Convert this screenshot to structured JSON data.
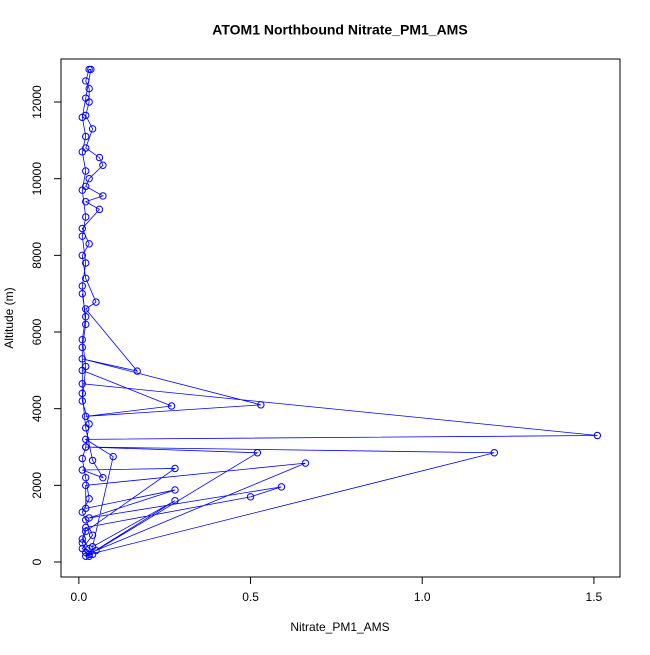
{
  "chart_data": {
    "type": "scatter_line",
    "title": "ATOM1 Northbound Nitrate_PM1_AMS",
    "x_label": "Nitrate_PM1_AMS",
    "y_label": "Altitude (m)",
    "color": "#0000ff",
    "xlim": [
      -0.052,
      1.576
    ],
    "ylim": [
      -391,
      13122
    ],
    "xticks": [
      {
        "value": 0,
        "label": "0.0"
      },
      {
        "value": 0.5,
        "label": "0.5"
      },
      {
        "value": 1,
        "label": "1.0"
      },
      {
        "value": 1.5,
        "label": "1.5"
      }
    ],
    "yticks": [
      0,
      2000,
      4000,
      6000,
      8000,
      10000,
      12000
    ],
    "x": [
      0.02,
      0.04,
      0.03,
      0.01,
      0.02,
      0.5,
      0.59,
      0.03,
      0.28,
      0.02,
      0.02,
      0.66,
      0.05,
      0.52,
      0.02,
      1.21,
      0.03,
      0.28,
      0.04,
      0.1,
      0.02,
      1.51,
      0.01,
      0.01,
      0.27,
      0.02,
      0.53,
      0.01,
      0.17,
      0.02,
      0.05,
      0.02,
      0.01,
      0.03,
      0.01,
      0.06,
      0.02,
      0.07,
      0.02,
      0.03,
      0.07,
      0.06,
      0.02,
      0.04,
      0.02,
      0.03,
      0.03,
      0.02,
      0.03,
      0.035,
      0.02,
      0.01,
      0.02,
      0.01,
      0.02,
      0.01,
      0.02,
      0.01,
      0.02,
      0.01,
      0.02,
      0.01,
      0.01,
      0.02,
      0.04,
      0.07,
      0.01,
      0.28,
      0.02,
      0.01,
      0.02,
      0.03,
      0.01,
      0.04,
      0.02,
      0.01,
      0.03,
      0.02,
      0.01,
      0.02,
      0.03,
      0.01,
      0.02,
      0.01,
      0.02,
      0.01
    ],
    "y": [
      150,
      200,
      350,
      600,
      900,
      1700,
      1960,
      1150,
      1880,
      1400,
      2000,
      2580,
      300,
      2850,
      3000,
      2850,
      200,
      1600,
      400,
      2750,
      3200,
      3300,
      4650,
      5000,
      4070,
      3800,
      4100,
      5300,
      4980,
      6600,
      6780,
      7400,
      8000,
      8300,
      8700,
      9200,
      9400,
      9550,
      9800,
      10000,
      10350,
      10550,
      10800,
      11300,
      11650,
      12000,
      12350,
      12550,
      12850,
      12850,
      12100,
      11600,
      11100,
      10700,
      10200,
      9700,
      9000,
      8500,
      7800,
      7200,
      6200,
      5600,
      4400,
      3500,
      2650,
      2200,
      2400,
      2440,
      800,
      500,
      250,
      150,
      350,
      700,
      1100,
      1300,
      1650,
      2200,
      2700,
      3000,
      3600,
      4200,
      5100,
      5800,
      6400,
      7000
    ]
  }
}
